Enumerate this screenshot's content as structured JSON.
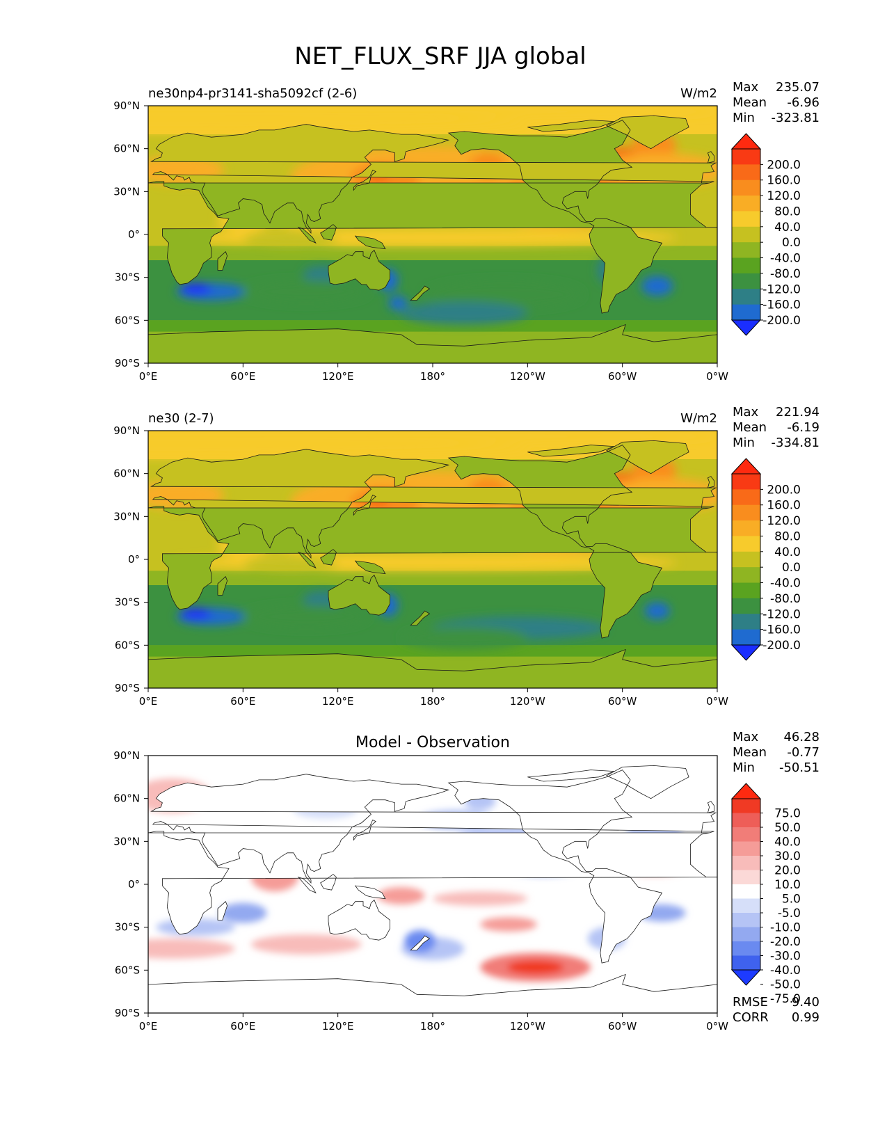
{
  "figure": {
    "title": "NET_FLUX_SRF JJA global"
  },
  "colors": {
    "main_levels": [
      "#1a2eff",
      "#1f6bd0",
      "#2e7f86",
      "#3c9140",
      "#5aa320",
      "#8fb522",
      "#c6c120",
      "#f7cb2c",
      "#f9ad25",
      "#f98d1e",
      "#f96a18",
      "#f93a14",
      "#ff2a10"
    ],
    "diff_levels": [
      "#1d3bff",
      "#3f62ee",
      "#6a8af0",
      "#93a9f0",
      "#b5c4f5",
      "#d6dff9",
      "#ffffff",
      "#fbd9d7",
      "#f8bcba",
      "#f59c98",
      "#f17d78",
      "#ee5e58",
      "#f03a24",
      "#ff2a10"
    ]
  },
  "chart_data": [
    {
      "type": "heatmap",
      "panel": "test",
      "title_left": "ne30np4-pr3141-sha5092cf (2-6)",
      "units": "W/m2",
      "stats": {
        "max_label": "Max",
        "max": "235.07",
        "mean_label": "Mean",
        "mean": "-6.96",
        "min_label": "Min",
        "min": "-323.81"
      },
      "colorbar_ticks": [
        "200.0",
        "160.0",
        "120.0",
        "80.0",
        "40.0",
        "0.0",
        "-40.0",
        "-80.0",
        "-120.0",
        "-160.0",
        "-200.0"
      ],
      "colorbar_levels": [
        -200,
        -160,
        -120,
        -80,
        -40,
        0,
        40,
        80,
        120,
        160,
        200
      ],
      "xticks": [
        "0°E",
        "60°E",
        "120°E",
        "180°",
        "120°W",
        "60°W",
        "0°W"
      ],
      "yticks": [
        "90°N",
        "60°N",
        "30°N",
        "0°",
        "30°S",
        "60°S",
        "90°S"
      ],
      "xlim": [
        0,
        360
      ],
      "ylim": [
        -90,
        90
      ]
    },
    {
      "type": "heatmap",
      "panel": "reference",
      "title_left": "ne30 (2-7)",
      "units": "W/m2",
      "stats": {
        "max_label": "Max",
        "max": "221.94",
        "mean_label": "Mean",
        "mean": "-6.19",
        "min_label": "Min",
        "min": "-334.81"
      },
      "colorbar_ticks": [
        "200.0",
        "160.0",
        "120.0",
        "80.0",
        "40.0",
        "0.0",
        "-40.0",
        "-80.0",
        "-120.0",
        "-160.0",
        "-200.0"
      ],
      "colorbar_levels": [
        -200,
        -160,
        -120,
        -80,
        -40,
        0,
        40,
        80,
        120,
        160,
        200
      ],
      "xticks": [
        "0°E",
        "60°E",
        "120°E",
        "180°",
        "120°W",
        "60°W",
        "0°W"
      ],
      "yticks": [
        "90°N",
        "60°N",
        "30°N",
        "0°",
        "30°S",
        "60°S",
        "90°S"
      ],
      "xlim": [
        0,
        360
      ],
      "ylim": [
        -90,
        90
      ]
    },
    {
      "type": "heatmap",
      "panel": "difference",
      "title_center": "Model - Observation",
      "stats": {
        "max_label": "Max",
        "max": "46.28",
        "mean_label": "Mean",
        "mean": "-0.77",
        "min_label": "Min",
        "min": "-50.51"
      },
      "extra_stats": {
        "rmse_label": "RMSE",
        "rmse": "9.40",
        "corr_label": "CORR",
        "corr": "0.99"
      },
      "colorbar_ticks": [
        "75.0",
        "50.0",
        "40.0",
        "30.0",
        "20.0",
        "10.0",
        "5.0",
        "-5.0",
        "-10.0",
        "-20.0",
        "-30.0",
        "-40.0",
        "-50.0",
        "-75.0"
      ],
      "colorbar_levels": [
        -75,
        -50,
        -40,
        -30,
        -20,
        -10,
        -5,
        5,
        10,
        20,
        30,
        40,
        50,
        75
      ],
      "xticks": [
        "0°E",
        "60°E",
        "120°E",
        "180°",
        "120°W",
        "60°W",
        "0°W"
      ],
      "yticks": [
        "90°N",
        "60°N",
        "30°N",
        "0°",
        "30°S",
        "60°S",
        "90°S"
      ],
      "xlim": [
        0,
        360
      ],
      "ylim": [
        -90,
        90
      ]
    }
  ]
}
